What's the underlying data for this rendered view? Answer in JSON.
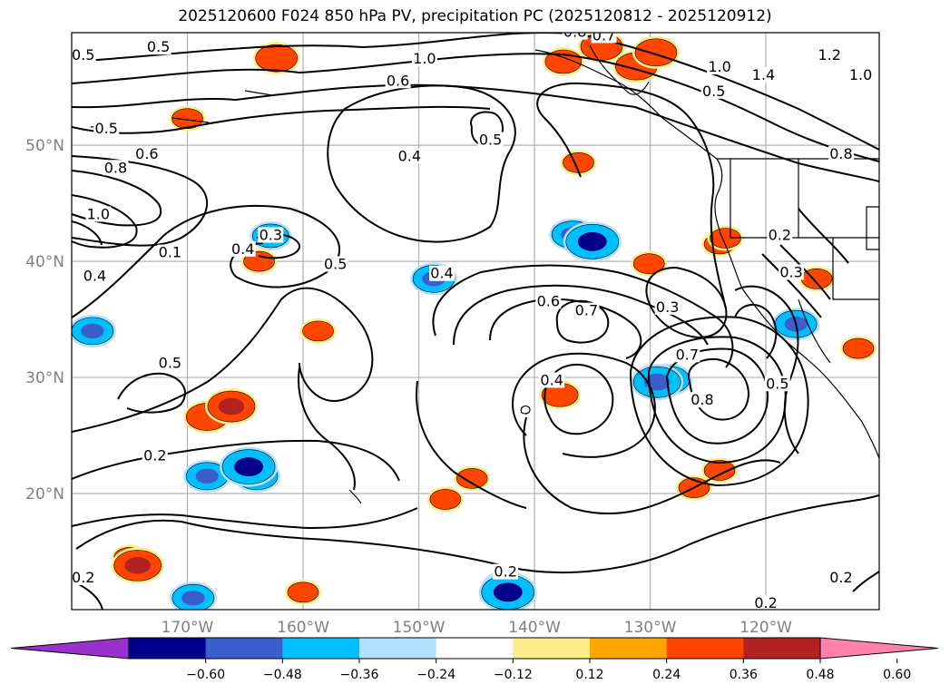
{
  "title": "2025120600 F024 850 hPa PV, precipitation PC (2025120812 - 2025120912)",
  "map": {
    "lat_labels": [
      "50°N",
      "40°N",
      "30°N",
      "20°N"
    ],
    "lon_labels": [
      "170°W",
      "160°W",
      "150°W",
      "140°W",
      "130°W",
      "120°W"
    ],
    "lat_values": [
      50,
      40,
      30,
      20
    ],
    "lon_values": [
      -170,
      -160,
      -150,
      -140,
      -130,
      -120
    ],
    "extent": {
      "lon_min": -180,
      "lon_max": -110.2,
      "lat_min": 10,
      "lat_max": 59.7
    },
    "gridlines": true
  },
  "contour_labels": [
    {
      "text": "0.5",
      "lon": -179,
      "lat": 57.5
    },
    {
      "text": "0.5",
      "lon": -172.5,
      "lat": 58.2
    },
    {
      "text": "0.8",
      "lon": -136.5,
      "lat": 59.5
    },
    {
      "text": "0.7",
      "lon": -134,
      "lat": 59.2
    },
    {
      "text": "1.0",
      "lon": -149.5,
      "lat": 57.2
    },
    {
      "text": "0.6",
      "lon": -151.8,
      "lat": 55.3
    },
    {
      "text": "1.0",
      "lon": -124,
      "lat": 56.5
    },
    {
      "text": "1.4",
      "lon": -120.2,
      "lat": 55.8
    },
    {
      "text": "1.2",
      "lon": -114.5,
      "lat": 57.5
    },
    {
      "text": "1.0",
      "lon": -111.8,
      "lat": 55.8
    },
    {
      "text": "0.5",
      "lon": -124.5,
      "lat": 54.4
    },
    {
      "text": "0.8",
      "lon": -113.5,
      "lat": 49
    },
    {
      "text": "0.5",
      "lon": -177,
      "lat": 51.2
    },
    {
      "text": "0.6",
      "lon": -173.5,
      "lat": 49
    },
    {
      "text": "0.8",
      "lon": -176.2,
      "lat": 47.8
    },
    {
      "text": "1.0",
      "lon": -177.7,
      "lat": 43.8
    },
    {
      "text": "0.5",
      "lon": -143.8,
      "lat": 50.2
    },
    {
      "text": "0.4",
      "lon": -150.8,
      "lat": 48.8
    },
    {
      "text": "0.3",
      "lon": -162.8,
      "lat": 42
    },
    {
      "text": "0.4",
      "lon": -165.2,
      "lat": 40.8
    },
    {
      "text": "0.1",
      "lon": -171.5,
      "lat": 40.5
    },
    {
      "text": "0.4",
      "lon": -178,
      "lat": 38.5
    },
    {
      "text": "0.5",
      "lon": -157.2,
      "lat": 39.5
    },
    {
      "text": "0.4",
      "lon": -148,
      "lat": 38.7
    },
    {
      "text": "0.6",
      "lon": -138.8,
      "lat": 36.3
    },
    {
      "text": "0.7",
      "lon": -135.5,
      "lat": 35.5
    },
    {
      "text": "0.3",
      "lon": -128.5,
      "lat": 35.8
    },
    {
      "text": "0.2",
      "lon": -118.8,
      "lat": 42
    },
    {
      "text": "0.3",
      "lon": -117.8,
      "lat": 38.8
    },
    {
      "text": "0.5",
      "lon": -171.5,
      "lat": 31
    },
    {
      "text": "0.7",
      "lon": -126.8,
      "lat": 31.7
    },
    {
      "text": "0.8",
      "lon": -125.5,
      "lat": 27.8
    },
    {
      "text": "0.4",
      "lon": -138.5,
      "lat": 29.5
    },
    {
      "text": "0.5",
      "lon": -119,
      "lat": 29.2
    },
    {
      "text": "0.2",
      "lon": -172.8,
      "lat": 23
    },
    {
      "text": "0.2",
      "lon": -142.5,
      "lat": 13
    },
    {
      "text": "0.2",
      "lon": -179,
      "lat": 12.5
    },
    {
      "text": "0.2",
      "lon": -113.5,
      "lat": 12.5
    },
    {
      "text": "0.2",
      "lon": -120,
      "lat": 10.3
    }
  ],
  "colorbar": {
    "colors": [
      "#9932cc",
      "#00008b",
      "#3a5fcd",
      "#00bfff",
      "#b0e2ff",
      "#ffffff",
      "#ffec8b",
      "#ffa500",
      "#ff4500",
      "#b22222",
      "#ff82ab"
    ],
    "tick_labels": [
      "−0.60",
      "−0.48",
      "−0.36",
      "−0.24",
      "−0.12",
      "0.12",
      "0.24",
      "0.36",
      "0.48",
      "0.60"
    ],
    "tick_values": [
      -0.6,
      -0.48,
      -0.36,
      -0.24,
      -0.12,
      0.12,
      0.24,
      0.36,
      0.48,
      0.6
    ],
    "extend": "both"
  },
  "precip_blobs": [
    {
      "lon": -162.3,
      "lat": 57.5,
      "level": 3
    },
    {
      "lon": -137.5,
      "lat": 57.2,
      "level": 2
    },
    {
      "lon": -131.2,
      "lat": 56.8,
      "level": 3
    },
    {
      "lon": -134.2,
      "lat": 58.5,
      "level": 3
    },
    {
      "lon": -129.5,
      "lat": 58,
      "level": 3
    },
    {
      "lon": -170,
      "lat": 52.3,
      "level": 1
    },
    {
      "lon": -136.2,
      "lat": 48.5,
      "level": 1
    },
    {
      "lon": -136.7,
      "lat": 42.3,
      "level": -3
    },
    {
      "lon": -135,
      "lat": 41.7,
      "level": -5
    },
    {
      "lon": -124,
      "lat": 41.5,
      "level": 1
    },
    {
      "lon": -162.8,
      "lat": 42.2,
      "level": -2
    },
    {
      "lon": -163.8,
      "lat": 40,
      "level": 1
    },
    {
      "lon": -148.7,
      "lat": 38.5,
      "level": -3
    },
    {
      "lon": -178.2,
      "lat": 34,
      "level": -3
    },
    {
      "lon": -158.7,
      "lat": 34,
      "level": 1
    },
    {
      "lon": -130.1,
      "lat": 39.8,
      "level": 1
    },
    {
      "lon": -123.5,
      "lat": 42,
      "level": 1
    },
    {
      "lon": -115.6,
      "lat": 38.5,
      "level": 1
    },
    {
      "lon": -117.4,
      "lat": 34.6,
      "level": -3
    },
    {
      "lon": -112,
      "lat": 32.5,
      "level": 1
    },
    {
      "lon": -128.4,
      "lat": 29.8,
      "level": -3
    },
    {
      "lon": -129.4,
      "lat": 29.6,
      "level": -4
    },
    {
      "lon": -137.8,
      "lat": 28.5,
      "level": 2
    },
    {
      "lon": -168.3,
      "lat": 26.6,
      "level": 3
    },
    {
      "lon": -166.2,
      "lat": 27.5,
      "level": 4
    },
    {
      "lon": -168.3,
      "lat": 21.5,
      "level": -3
    },
    {
      "lon": -164,
      "lat": 21.5,
      "level": -3
    },
    {
      "lon": -164.7,
      "lat": 22.3,
      "level": -5
    },
    {
      "lon": -145.4,
      "lat": 21.3,
      "level": 1
    },
    {
      "lon": -147.7,
      "lat": 19.5,
      "level": 1
    },
    {
      "lon": -126.2,
      "lat": 20.5,
      "level": 1
    },
    {
      "lon": -124,
      "lat": 22,
      "level": 1
    },
    {
      "lon": -142.5,
      "lat": 12,
      "level": -3
    },
    {
      "lon": -142.3,
      "lat": 11.5,
      "level": -5
    },
    {
      "lon": -175,
      "lat": 14.5,
      "level": 1
    },
    {
      "lon": -174.3,
      "lat": 13.8,
      "level": 4
    },
    {
      "lon": -160,
      "lat": 11.5,
      "level": 1
    },
    {
      "lon": -169.5,
      "lat": 11,
      "level": -3
    }
  ]
}
